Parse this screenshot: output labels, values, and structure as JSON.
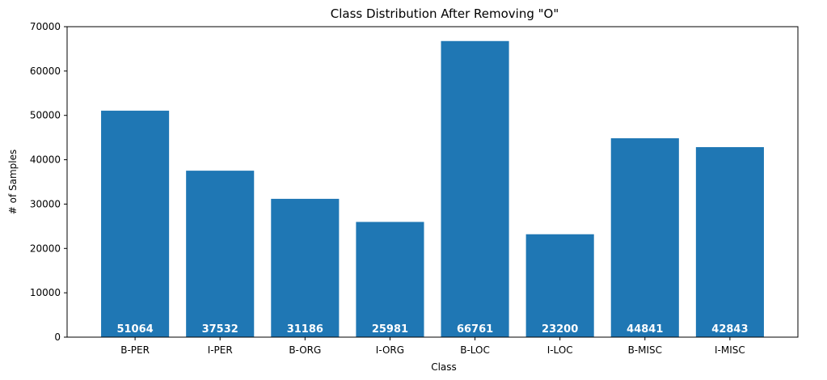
{
  "chart_data": {
    "type": "bar",
    "title": "Class Distribution After Removing \"O\"",
    "xlabel": "Class",
    "ylabel": "# of Samples",
    "categories": [
      "B-PER",
      "I-PER",
      "B-ORG",
      "I-ORG",
      "B-LOC",
      "I-LOC",
      "B-MISC",
      "I-MISC"
    ],
    "values": [
      51064,
      37532,
      31186,
      25981,
      66761,
      23200,
      44841,
      42843
    ],
    "ylim": [
      0,
      70000
    ],
    "yticks": [
      0,
      10000,
      20000,
      30000,
      40000,
      50000,
      60000,
      70000
    ],
    "bar_color": "#1f77b4",
    "label_color": "#ffffff",
    "grid": false,
    "legend": "none"
  }
}
